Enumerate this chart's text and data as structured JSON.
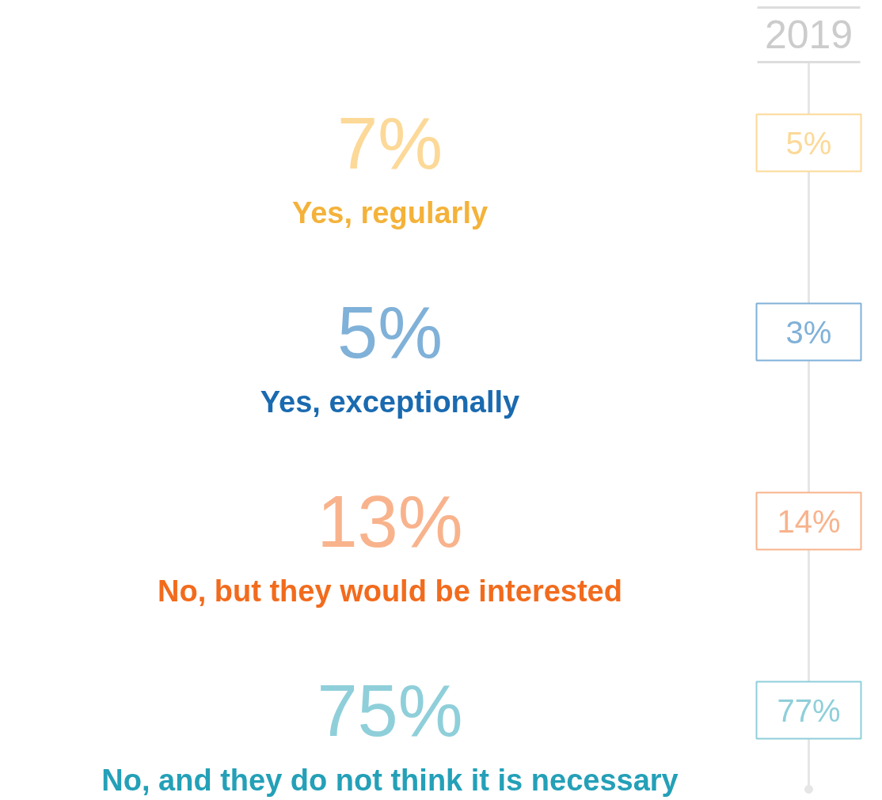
{
  "chart_data": {
    "type": "other",
    "categories": [
      "Yes, regularly",
      "Yes, exceptionally",
      "No, but they would be interested",
      "No, and they do not think it is necessary"
    ],
    "colors": [
      "#f4b23a",
      "#1a6ab0",
      "#f26b1d",
      "#24a0b8"
    ],
    "series": [
      {
        "values": [
          7,
          5,
          13,
          75
        ],
        "value_labels": [
          "7%",
          "5%",
          "13%",
          "75%"
        ],
        "colors": [
          "#fcd998",
          "#80b1d8",
          "#f8b38c",
          "#8fcfda"
        ]
      },
      {
        "name": "2019",
        "values": [
          5,
          3,
          14,
          77
        ],
        "value_labels": [
          "5%",
          "3%",
          "14%",
          "77%"
        ],
        "colors": [
          "#fcd998",
          "#80b1d8",
          "#f8b38c",
          "#8fcfda"
        ]
      }
    ],
    "data_labels": true
  }
}
